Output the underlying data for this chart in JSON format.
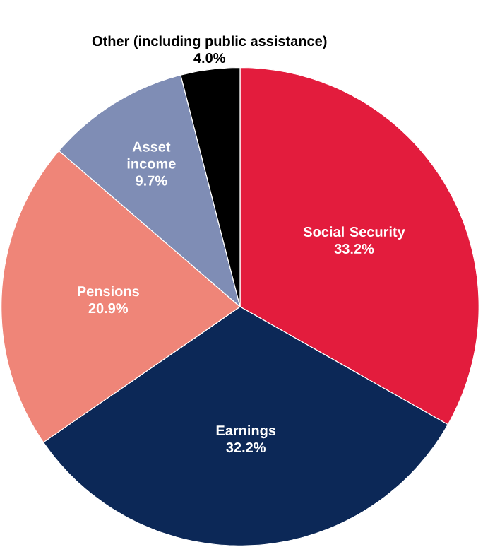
{
  "chart_data": {
    "type": "pie",
    "categories": [
      "Social Security",
      "Earnings",
      "Pensions",
      "Asset income",
      "Other (including public assistance)"
    ],
    "values": [
      33.2,
      32.2,
      20.9,
      9.7,
      4.0
    ],
    "value_labels": [
      "33.2%",
      "32.2%",
      "20.9%",
      "9.7%",
      "4.0%"
    ],
    "colors": [
      "#e31c3d",
      "#0c2857",
      "#ef8578",
      "#7f8db5",
      "#000000"
    ]
  }
}
